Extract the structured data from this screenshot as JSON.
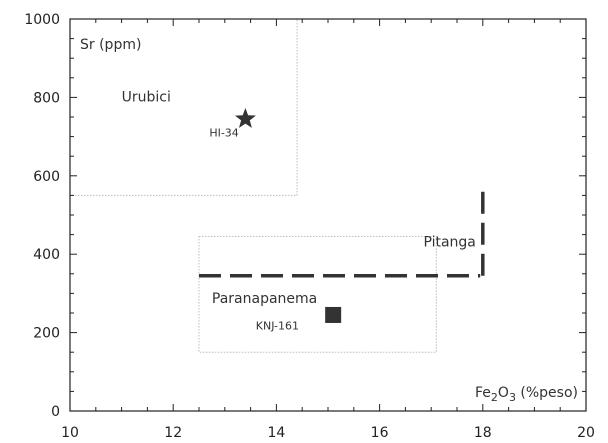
{
  "chart_data": {
    "type": "scatter",
    "xlabel": "Fe2O3 (%peso)",
    "xlabel_parts": {
      "main": "Fe",
      "sub1": "2",
      "mid": "O",
      "sub2": "3",
      "unit": " (%peso)"
    },
    "ylabel": "Sr (ppm)",
    "xlim": [
      10,
      20
    ],
    "ylim": [
      0,
      1000
    ],
    "x_ticks": [
      10,
      12,
      14,
      16,
      18,
      20
    ],
    "y_ticks": [
      0,
      200,
      400,
      600,
      800,
      1000
    ],
    "x_tick_labels": [
      "10",
      "12",
      "14",
      "16",
      "18",
      "20"
    ],
    "y_tick_labels": [
      "0",
      "200",
      "400",
      "600",
      "800",
      "1000"
    ],
    "grid": false,
    "fields": [
      {
        "name": "Urubici",
        "x_range": [
          10,
          14.4
        ],
        "y_range": [
          550,
          1000
        ],
        "style": "dotted-box",
        "label_at": [
          11.0,
          790
        ]
      },
      {
        "name": "Paranapanema",
        "x_range": [
          12.5,
          17.1
        ],
        "y_range": [
          150,
          445
        ],
        "style": "dotted-box",
        "label_at": [
          12.75,
          275
        ]
      }
    ],
    "pitanga": {
      "name": "Pitanga",
      "label_at": [
        16.85,
        420
      ],
      "horizontal_line": {
        "x": [
          12.5,
          17.95
        ],
        "y": 345
      },
      "vertical_line": {
        "x": 18.0,
        "y": [
          345,
          580
        ]
      }
    },
    "samples": [
      {
        "name": "HI-34",
        "x": 13.4,
        "y": 745,
        "marker": "star",
        "label_at": [
          12.7,
          700
        ]
      },
      {
        "name": "KNJ-161",
        "x": 15.1,
        "y": 245,
        "marker": "square",
        "label_at": [
          13.6,
          208
        ]
      }
    ],
    "colors": {
      "marker": "#333333",
      "line": "#333333",
      "box": "#bdbdbd",
      "frame": "#222222"
    }
  }
}
